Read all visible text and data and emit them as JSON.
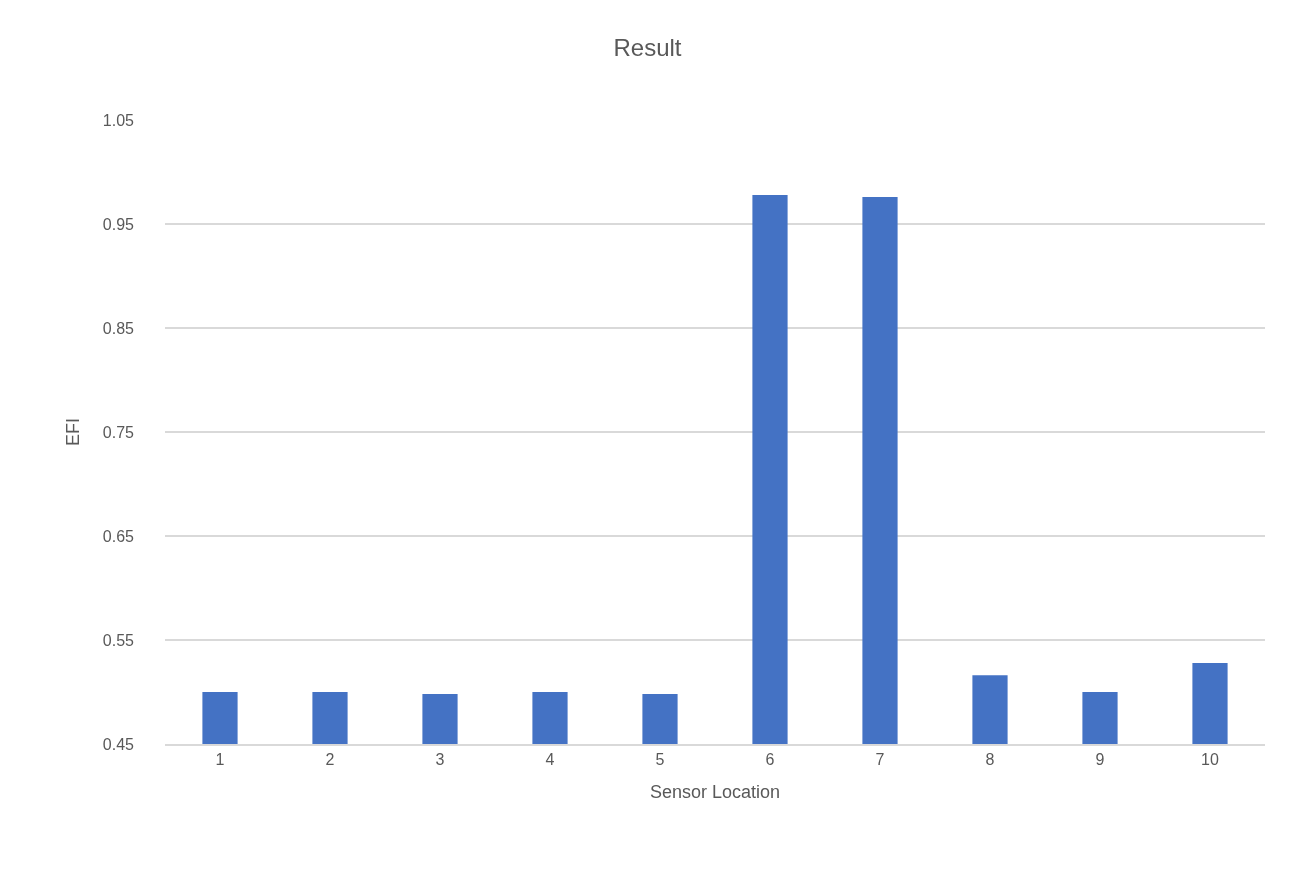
{
  "chart_data": {
    "type": "bar",
    "title": "Result",
    "xlabel": "Sensor Location",
    "ylabel": "EFI",
    "categories": [
      "1",
      "2",
      "3",
      "4",
      "5",
      "6",
      "7",
      "8",
      "9",
      "10"
    ],
    "values": [
      0.5,
      0.5,
      0.498,
      0.5,
      0.498,
      0.978,
      0.976,
      0.516,
      0.5,
      0.528
    ],
    "color": "#4472c4",
    "ylim": [
      0.45,
      1.05
    ],
    "yticks": [
      0.45,
      0.55,
      0.65,
      0.75,
      0.85,
      0.95,
      1.05
    ],
    "grid": "y"
  }
}
